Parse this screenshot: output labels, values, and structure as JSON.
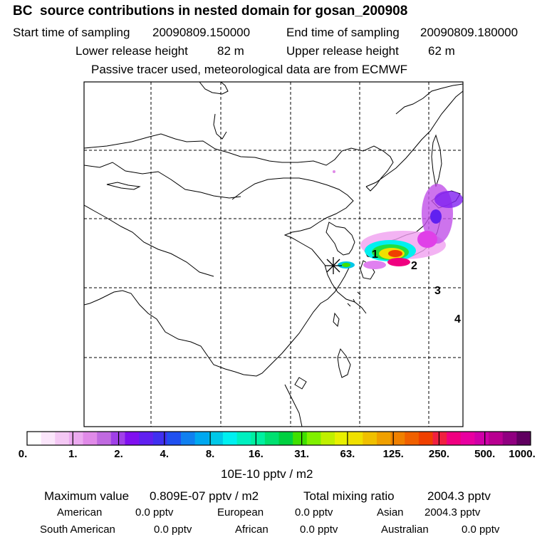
{
  "header": {
    "title": "BC  source contributions in nested domain for gosan_200908",
    "start_time_label": "Start time of sampling",
    "start_time_value": "20090809.150000",
    "end_time_label": "End time of sampling",
    "end_time_value": "20090809.180000",
    "lower_release_label": "Lower release height",
    "lower_release_value": "82 m",
    "upper_release_label": "Upper release height",
    "upper_release_value": "62 m",
    "tracer_note": "Passive tracer used, meteorological data are from ECMWF"
  },
  "map": {
    "receptor_marker": "asterisk-icon",
    "trajectory_labels": [
      "1",
      "2",
      "3",
      "4"
    ],
    "colors": {
      "coastline": "#000000",
      "grid": "#000000",
      "background": "#ffffff"
    }
  },
  "colorbar": {
    "labels": [
      "0.",
      "1.",
      "2.",
      "4.",
      "8.",
      "16.",
      "31.",
      "63.",
      "125.",
      "250.",
      "500.",
      "1000."
    ],
    "unit": "10E-10 pptv / m2",
    "colors": [
      "#ffffff",
      "#fbe6fb",
      "#f4c8f4",
      "#ecaaf0",
      "#e08ae8",
      "#c06ae0",
      "#a040e8",
      "#8010f0",
      "#6020f0",
      "#4030f0",
      "#2050f0",
      "#1080f0",
      "#00a8f0",
      "#00c8e8",
      "#00f0f0",
      "#00f0c0",
      "#00f0a0",
      "#00e070",
      "#00d040",
      "#40e000",
      "#80f000",
      "#c0f000",
      "#e8f000",
      "#f0e000",
      "#f0c000",
      "#f0a000",
      "#f08000",
      "#f06000",
      "#f04000",
      "#f02040",
      "#f00080",
      "#e800a0",
      "#d000a8",
      "#b80090",
      "#900080",
      "#600060"
    ]
  },
  "footer": {
    "max_label": "Maximum value",
    "max_value": "0.809E-07 pptv / m2",
    "total_label": "Total mixing ratio",
    "total_value": "2004.3 pptv",
    "regions": [
      {
        "name": "American",
        "value": "0.0 pptv"
      },
      {
        "name": "European",
        "value": "0.0 pptv"
      },
      {
        "name": "Asian",
        "value": "2004.3 pptv"
      },
      {
        "name": "South American",
        "value": "0.0 pptv"
      },
      {
        "name": "African",
        "value": "0.0 pptv"
      },
      {
        "name": "Australian",
        "value": "0.0 pptv"
      }
    ]
  }
}
